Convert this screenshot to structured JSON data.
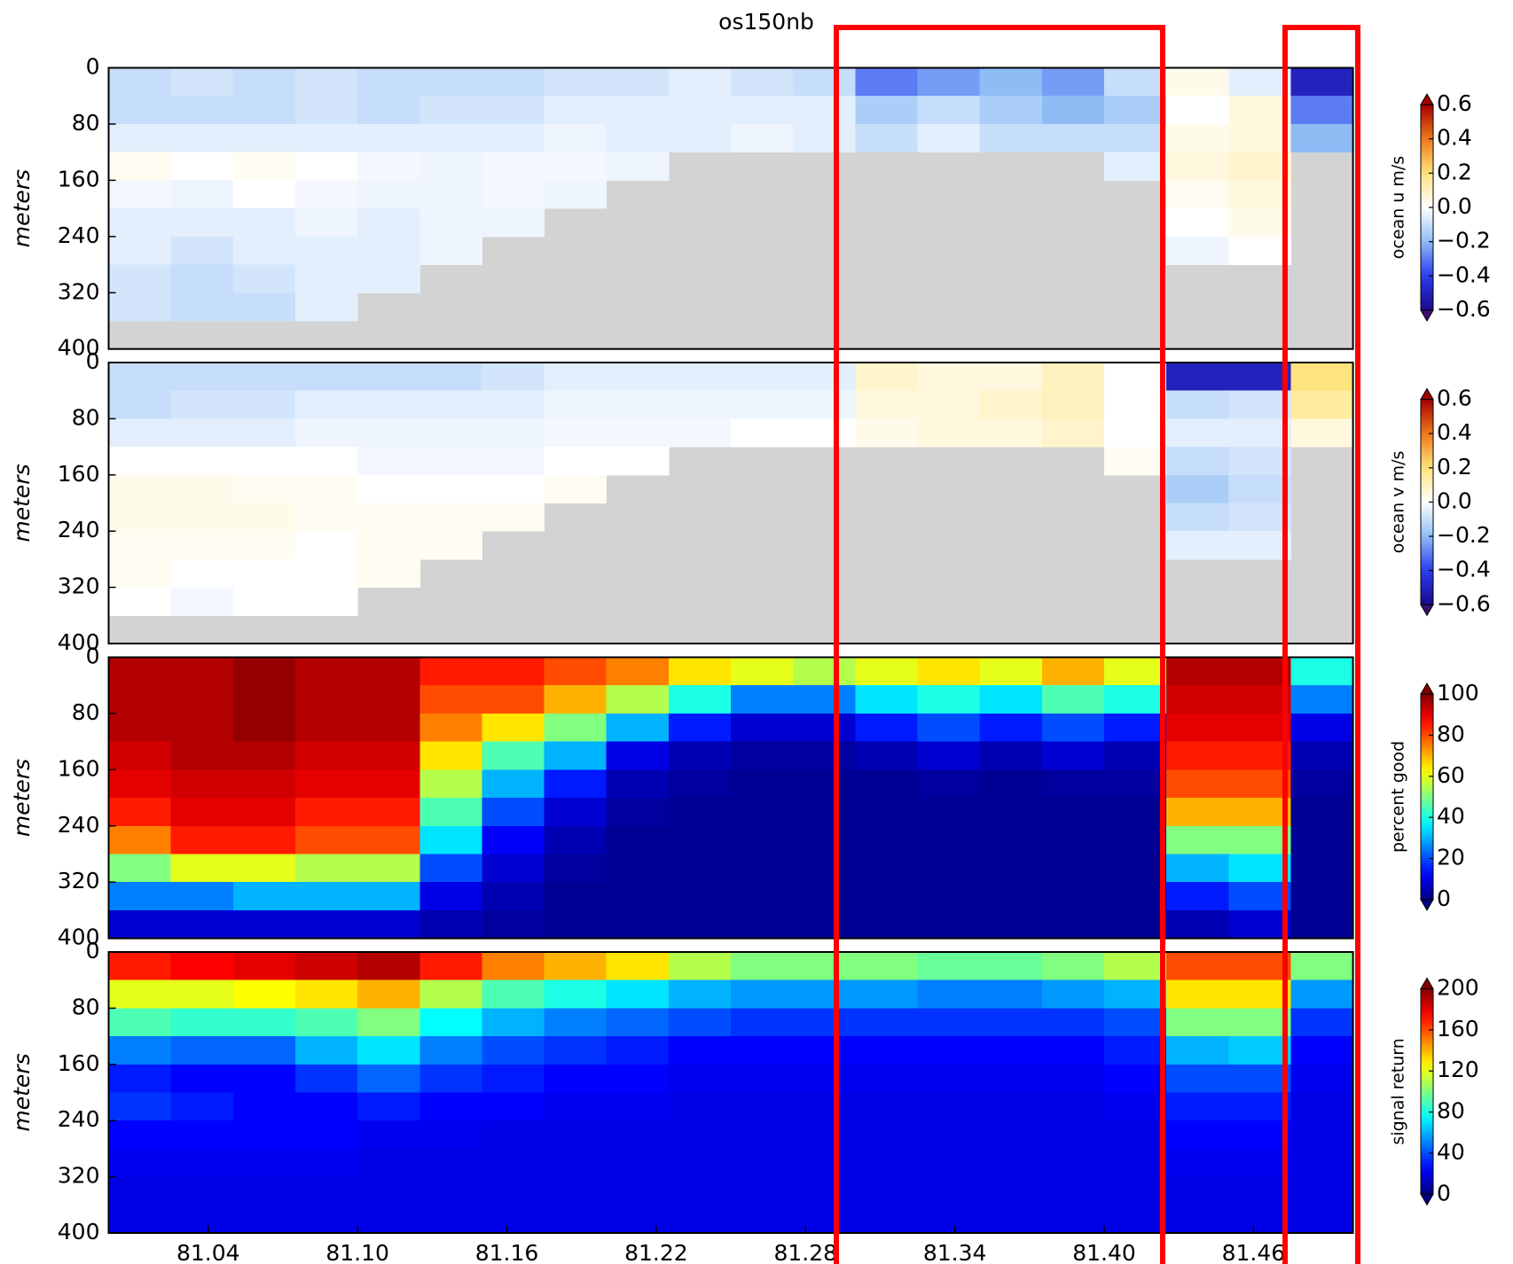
{
  "chart_data": [
    {
      "type": "heatmap",
      "title": "os150nb",
      "ylabel": "meters",
      "clabel": "ocean u m/s",
      "colormap": "diverging",
      "xlim": [
        81.0,
        81.5
      ],
      "ylim": [
        400,
        0
      ],
      "yticks": [
        0,
        80,
        160,
        240,
        320,
        400
      ],
      "xbins": [
        81.0,
        81.025,
        81.05,
        81.075,
        81.1,
        81.125,
        81.15,
        81.175,
        81.2,
        81.225,
        81.25,
        81.275,
        81.3,
        81.325,
        81.35,
        81.375,
        81.4,
        81.425,
        81.45,
        81.475,
        81.5
      ],
      "ybins": [
        0,
        40,
        80,
        120,
        160,
        200,
        240,
        280,
        320,
        360,
        400
      ],
      "clim": [
        -0.6,
        0.6
      ],
      "cticks": [
        0.6,
        0.4,
        0.2,
        {
          "value": 0,
          "label": "0.0"
        },
        {
          "value": -0.2,
          "label": "−0.2"
        },
        {
          "value": -0.4,
          "label": "−0.4"
        },
        {
          "value": -0.6,
          "label": "−0.6"
        }
      ],
      "values": [
        [
          -0.1,
          -0.08,
          -0.1,
          -0.08,
          -0.1,
          -0.1,
          -0.1,
          -0.08,
          -0.08,
          -0.05,
          -0.08,
          -0.1,
          -0.3,
          -0.25,
          -0.2,
          -0.25,
          -0.1,
          0.03,
          -0.05,
          -0.5
        ],
        [
          -0.1,
          -0.1,
          -0.1,
          -0.08,
          -0.1,
          -0.08,
          -0.08,
          -0.05,
          -0.05,
          -0.05,
          -0.05,
          -0.05,
          -0.15,
          -0.1,
          -0.15,
          -0.2,
          -0.15,
          0,
          0.05,
          -0.3
        ],
        [
          -0.05,
          -0.05,
          -0.05,
          -0.05,
          -0.05,
          -0.05,
          -0.05,
          -0.03,
          -0.05,
          -0.05,
          -0.03,
          -0.05,
          -0.1,
          -0.05,
          -0.1,
          -0.1,
          -0.1,
          0.03,
          0.05,
          -0.2
        ],
        [
          0.02,
          0,
          0.02,
          0,
          -0.02,
          -0.03,
          -0.02,
          -0.02,
          -0.03,
          null,
          null,
          null,
          null,
          null,
          null,
          null,
          -0.05,
          0.05,
          0.08,
          null
        ],
        [
          -0.02,
          -0.03,
          0,
          -0.02,
          -0.03,
          -0.03,
          -0.02,
          -0.03,
          null,
          null,
          null,
          null,
          null,
          null,
          null,
          null,
          null,
          0.02,
          0.05,
          null
        ],
        [
          -0.05,
          -0.05,
          -0.05,
          -0.03,
          -0.05,
          -0.03,
          -0.03,
          null,
          null,
          null,
          null,
          null,
          null,
          null,
          null,
          null,
          null,
          0,
          0.03,
          null
        ],
        [
          -0.05,
          -0.08,
          -0.05,
          -0.05,
          -0.05,
          -0.03,
          null,
          null,
          null,
          null,
          null,
          null,
          null,
          null,
          null,
          null,
          null,
          -0.03,
          0,
          null
        ],
        [
          -0.08,
          -0.1,
          -0.08,
          -0.05,
          -0.05,
          null,
          null,
          null,
          null,
          null,
          null,
          null,
          null,
          null,
          null,
          null,
          null,
          null,
          null,
          null
        ],
        [
          -0.08,
          -0.1,
          -0.1,
          -0.05,
          null,
          null,
          null,
          null,
          null,
          null,
          null,
          null,
          null,
          null,
          null,
          null,
          null,
          null,
          null,
          null
        ],
        [
          null,
          null,
          null,
          null,
          null,
          null,
          null,
          null,
          null,
          null,
          null,
          null,
          null,
          null,
          null,
          null,
          null,
          null,
          null,
          null
        ]
      ]
    },
    {
      "type": "heatmap",
      "ylabel": "meters",
      "clabel": "ocean v m/s",
      "colormap": "diverging",
      "xlim": [
        81.0,
        81.5
      ],
      "ylim": [
        400,
        0
      ],
      "yticks": [
        0,
        80,
        160,
        240,
        320,
        400
      ],
      "xbins": [
        81.0,
        81.025,
        81.05,
        81.075,
        81.1,
        81.125,
        81.15,
        81.175,
        81.2,
        81.225,
        81.25,
        81.275,
        81.3,
        81.325,
        81.35,
        81.375,
        81.4,
        81.425,
        81.45,
        81.475,
        81.5
      ],
      "ybins": [
        0,
        40,
        80,
        120,
        160,
        200,
        240,
        280,
        320,
        360,
        400
      ],
      "clim": [
        -0.6,
        0.6
      ],
      "cticks": [
        0.6,
        0.4,
        0.2,
        {
          "value": 0,
          "label": "0.0"
        },
        {
          "value": -0.2,
          "label": "−0.2"
        },
        {
          "value": -0.4,
          "label": "−0.4"
        },
        {
          "value": -0.6,
          "label": "−0.6"
        }
      ],
      "values": [
        [
          -0.1,
          -0.1,
          -0.1,
          -0.1,
          -0.1,
          -0.1,
          -0.08,
          -0.05,
          -0.05,
          -0.05,
          -0.05,
          -0.05,
          0.08,
          0.05,
          0.05,
          0.1,
          0,
          -0.5,
          -0.5,
          0.2
        ],
        [
          -0.1,
          -0.08,
          -0.08,
          -0.05,
          -0.05,
          -0.05,
          -0.05,
          -0.03,
          -0.03,
          -0.03,
          -0.03,
          -0.03,
          0.05,
          0.05,
          0.08,
          0.1,
          0,
          -0.1,
          -0.08,
          0.15
        ],
        [
          -0.05,
          -0.05,
          -0.05,
          -0.03,
          -0.03,
          -0.03,
          -0.03,
          -0.02,
          -0.02,
          -0.02,
          0,
          0,
          0.03,
          0.05,
          0.05,
          0.08,
          0,
          -0.05,
          -0.05,
          0.05
        ],
        [
          0,
          0,
          0,
          0,
          -0.02,
          -0.02,
          -0.02,
          0,
          0,
          null,
          null,
          null,
          null,
          null,
          null,
          null,
          0.02,
          -0.1,
          -0.08,
          null
        ],
        [
          0.03,
          0.03,
          0.02,
          0.02,
          0,
          0,
          0,
          0.02,
          null,
          null,
          null,
          null,
          null,
          null,
          null,
          null,
          null,
          -0.15,
          -0.1,
          null
        ],
        [
          0.03,
          0.03,
          0.03,
          0.02,
          0.02,
          0.02,
          0.02,
          null,
          null,
          null,
          null,
          null,
          null,
          null,
          null,
          null,
          null,
          -0.1,
          -0.08,
          null
        ],
        [
          0.02,
          0.02,
          0.02,
          0,
          0.02,
          0.02,
          null,
          null,
          null,
          null,
          null,
          null,
          null,
          null,
          null,
          null,
          null,
          -0.05,
          -0.05,
          null
        ],
        [
          0.02,
          0,
          0,
          0,
          0.02,
          null,
          null,
          null,
          null,
          null,
          null,
          null,
          null,
          null,
          null,
          null,
          null,
          null,
          null,
          null
        ],
        [
          0,
          -0.02,
          0,
          0,
          null,
          null,
          null,
          null,
          null,
          null,
          null,
          null,
          null,
          null,
          null,
          null,
          null,
          null,
          null,
          null
        ],
        [
          null,
          null,
          null,
          null,
          null,
          null,
          null,
          null,
          null,
          null,
          null,
          null,
          null,
          null,
          null,
          null,
          null,
          null,
          null,
          null
        ]
      ]
    },
    {
      "type": "heatmap",
      "ylabel": "meters",
      "clabel": "percent good",
      "colormap": "jet",
      "xlim": [
        81.0,
        81.5
      ],
      "ylim": [
        400,
        0
      ],
      "yticks": [
        0,
        80,
        160,
        240,
        320,
        400
      ],
      "xbins": [
        81.0,
        81.025,
        81.05,
        81.075,
        81.1,
        81.125,
        81.15,
        81.175,
        81.2,
        81.225,
        81.25,
        81.275,
        81.3,
        81.325,
        81.35,
        81.375,
        81.4,
        81.425,
        81.45,
        81.475,
        81.5
      ],
      "ybins": [
        0,
        40,
        80,
        120,
        160,
        200,
        240,
        280,
        320,
        360,
        400
      ],
      "clim": [
        0,
        100
      ],
      "cticks": [
        100,
        80,
        60,
        40,
        20,
        0
      ],
      "values": [
        [
          95,
          95,
          98,
          95,
          95,
          85,
          85,
          80,
          75,
          65,
          60,
          55,
          60,
          65,
          60,
          70,
          60,
          95,
          95,
          40
        ],
        [
          95,
          95,
          98,
          95,
          95,
          80,
          80,
          70,
          55,
          40,
          25,
          25,
          35,
          40,
          35,
          45,
          40,
          92,
          92,
          25
        ],
        [
          95,
          95,
          98,
          95,
          95,
          75,
          65,
          50,
          30,
          15,
          8,
          8,
          15,
          20,
          15,
          20,
          15,
          90,
          90,
          10
        ],
        [
          92,
          95,
          95,
          92,
          92,
          65,
          45,
          30,
          10,
          5,
          3,
          3,
          5,
          8,
          5,
          8,
          5,
          85,
          85,
          5
        ],
        [
          90,
          92,
          92,
          90,
          90,
          55,
          30,
          15,
          5,
          3,
          2,
          2,
          2,
          3,
          2,
          3,
          3,
          80,
          80,
          3
        ],
        [
          85,
          90,
          90,
          85,
          85,
          45,
          20,
          8,
          3,
          2,
          2,
          2,
          2,
          2,
          2,
          2,
          2,
          70,
          70,
          2
        ],
        [
          75,
          85,
          85,
          80,
          80,
          35,
          12,
          5,
          2,
          2,
          2,
          2,
          2,
          2,
          2,
          2,
          2,
          50,
          50,
          2
        ],
        [
          50,
          60,
          60,
          55,
          55,
          20,
          8,
          3,
          2,
          2,
          2,
          2,
          2,
          2,
          2,
          2,
          2,
          30,
          35,
          2
        ],
        [
          25,
          25,
          30,
          30,
          30,
          10,
          5,
          2,
          2,
          2,
          2,
          2,
          2,
          2,
          2,
          2,
          2,
          15,
          20,
          2
        ],
        [
          8,
          8,
          8,
          8,
          8,
          5,
          3,
          2,
          2,
          2,
          2,
          2,
          2,
          2,
          2,
          2,
          2,
          5,
          8,
          2
        ]
      ]
    },
    {
      "type": "heatmap",
      "ylabel": "meters",
      "clabel": "signal return",
      "colormap": "jet",
      "xlim": [
        81.0,
        81.5
      ],
      "ylim": [
        400,
        0
      ],
      "yticks": [
        0,
        80,
        160,
        240,
        320,
        400
      ],
      "xticks": [
        81.04,
        {
          "value": 81.1,
          "label": "81.10"
        },
        81.16,
        81.22,
        81.28,
        81.34,
        {
          "value": 81.4,
          "label": "81.40"
        },
        81.46
      ],
      "xbins": [
        81.0,
        81.025,
        81.05,
        81.075,
        81.1,
        81.125,
        81.15,
        81.175,
        81.2,
        81.225,
        81.25,
        81.275,
        81.3,
        81.325,
        81.35,
        81.375,
        81.4,
        81.425,
        81.45,
        81.475,
        81.5
      ],
      "ybins": [
        0,
        40,
        80,
        120,
        160,
        200,
        240,
        280,
        320,
        360,
        400
      ],
      "clim": [
        0,
        200
      ],
      "cticks": [
        200,
        160,
        120,
        80,
        40,
        0
      ],
      "values": [
        [
          170,
          175,
          180,
          185,
          190,
          170,
          150,
          140,
          130,
          110,
          100,
          100,
          100,
          95,
          95,
          100,
          110,
          160,
          160,
          100
        ],
        [
          120,
          120,
          125,
          130,
          140,
          110,
          90,
          80,
          70,
          60,
          55,
          55,
          55,
          50,
          50,
          55,
          60,
          130,
          130,
          55
        ],
        [
          90,
          85,
          85,
          90,
          100,
          75,
          60,
          50,
          45,
          40,
          35,
          35,
          35,
          35,
          35,
          35,
          40,
          100,
          100,
          35
        ],
        [
          50,
          45,
          45,
          60,
          70,
          50,
          40,
          35,
          30,
          25,
          25,
          25,
          25,
          25,
          25,
          25,
          30,
          60,
          65,
          25
        ],
        [
          30,
          25,
          25,
          35,
          45,
          35,
          30,
          25,
          25,
          22,
          22,
          22,
          22,
          22,
          22,
          22,
          25,
          40,
          40,
          22
        ],
        [
          35,
          30,
          25,
          25,
          30,
          25,
          25,
          22,
          22,
          20,
          20,
          20,
          20,
          20,
          20,
          20,
          22,
          30,
          30,
          20
        ],
        [
          25,
          25,
          25,
          25,
          22,
          22,
          20,
          20,
          20,
          20,
          20,
          20,
          20,
          20,
          20,
          20,
          20,
          25,
          25,
          20
        ],
        [
          22,
          22,
          22,
          22,
          20,
          20,
          20,
          20,
          20,
          20,
          20,
          20,
          20,
          20,
          20,
          20,
          20,
          22,
          22,
          20
        ],
        [
          20,
          20,
          20,
          20,
          20,
          20,
          20,
          20,
          20,
          20,
          20,
          20,
          20,
          20,
          20,
          20,
          20,
          20,
          20,
          20
        ],
        [
          20,
          20,
          20,
          20,
          20,
          20,
          20,
          20,
          20,
          20,
          20,
          20,
          20,
          20,
          20,
          20,
          20,
          20,
          20,
          20
        ]
      ]
    }
  ]
}
